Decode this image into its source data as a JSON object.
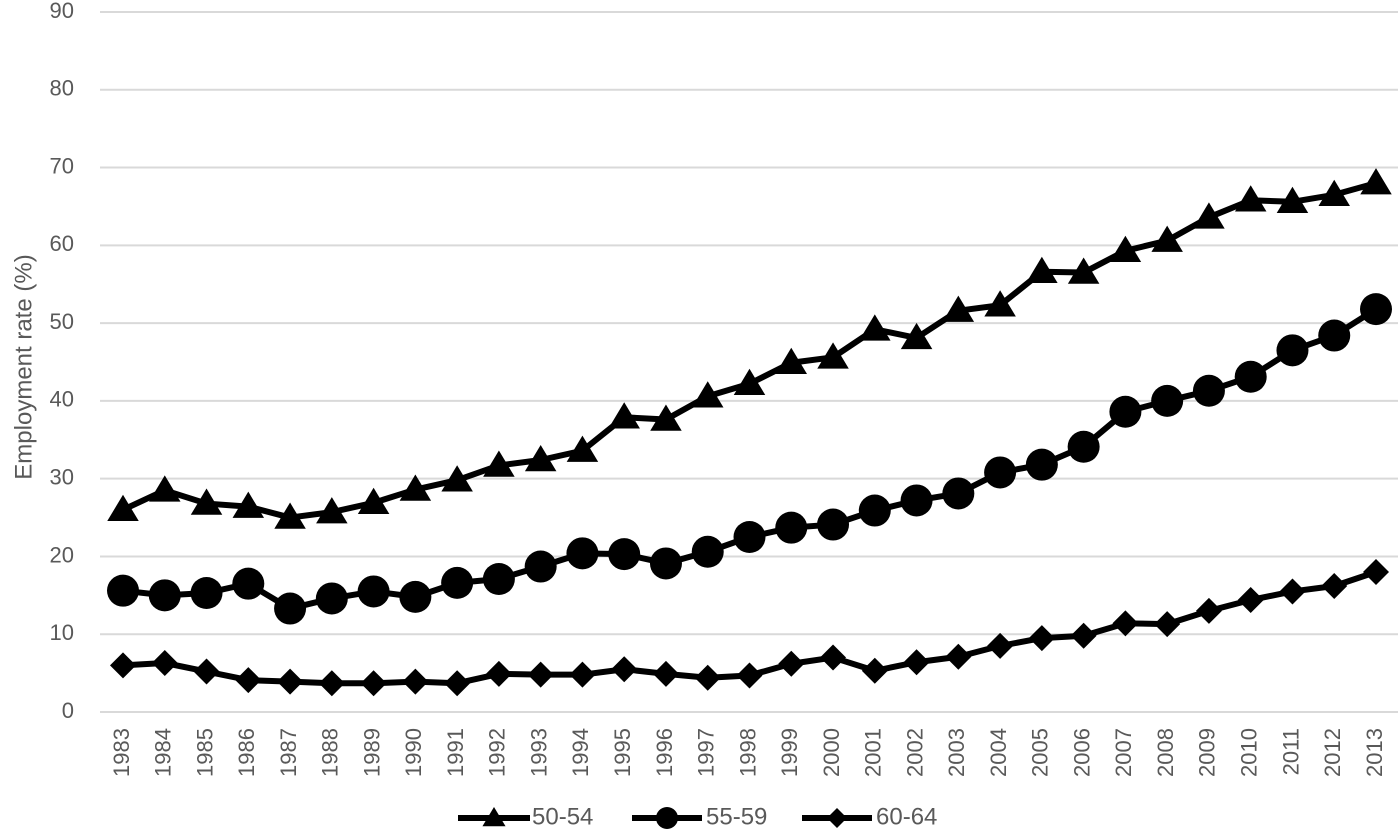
{
  "chart_data": {
    "type": "line",
    "title": "",
    "xlabel": "",
    "ylabel": "Employment rate (%)",
    "ylim": [
      0,
      90
    ],
    "yticks": [
      "0",
      "10",
      "20",
      "30",
      "40",
      "50",
      "60",
      "70",
      "80",
      "90"
    ],
    "x": [
      "1983",
      "1984",
      "1985",
      "1986",
      "1987",
      "1988",
      "1989",
      "1990",
      "1991",
      "1992",
      "1993",
      "1994",
      "1995",
      "1996",
      "1997",
      "1998",
      "1999",
      "2000",
      "2001",
      "2002",
      "2003",
      "2004",
      "2005",
      "2006",
      "2007",
      "2008",
      "2009",
      "2010",
      "2011",
      "2012",
      "2013"
    ],
    "grid": true,
    "legend_position": "bottom",
    "series": [
      {
        "name": "50-54",
        "marker": "triangle",
        "values": [
          26.0,
          28.5,
          26.8,
          26.4,
          25.0,
          25.7,
          26.9,
          28.6,
          29.8,
          31.7,
          32.4,
          33.6,
          37.9,
          37.6,
          40.6,
          42.2,
          44.9,
          45.6,
          49.2,
          48.1,
          51.6,
          52.3,
          56.6,
          56.5,
          59.3,
          60.6,
          63.6,
          65.8,
          65.6,
          66.5,
          68.0
        ],
        "color": "#000000"
      },
      {
        "name": "55-59",
        "marker": "circle",
        "values": [
          15.6,
          15.0,
          15.3,
          16.5,
          13.3,
          14.6,
          15.5,
          14.8,
          16.6,
          17.1,
          18.7,
          20.4,
          20.3,
          19.1,
          20.6,
          22.5,
          23.7,
          24.1,
          25.9,
          27.2,
          28.1,
          30.8,
          31.8,
          34.1,
          38.6,
          40.0,
          41.3,
          43.1,
          46.5,
          48.4,
          51.8
        ],
        "color": "#000000"
      },
      {
        "name": "60-64",
        "marker": "diamond",
        "values": [
          6.0,
          6.3,
          5.2,
          4.1,
          3.9,
          3.7,
          3.7,
          3.9,
          3.7,
          4.9,
          4.8,
          4.8,
          5.5,
          4.9,
          4.4,
          4.7,
          6.2,
          7.0,
          5.3,
          6.4,
          7.1,
          8.5,
          9.5,
          9.8,
          11.4,
          11.3,
          13.0,
          14.4,
          15.5,
          16.2,
          18.0
        ],
        "color": "#000000"
      }
    ]
  }
}
